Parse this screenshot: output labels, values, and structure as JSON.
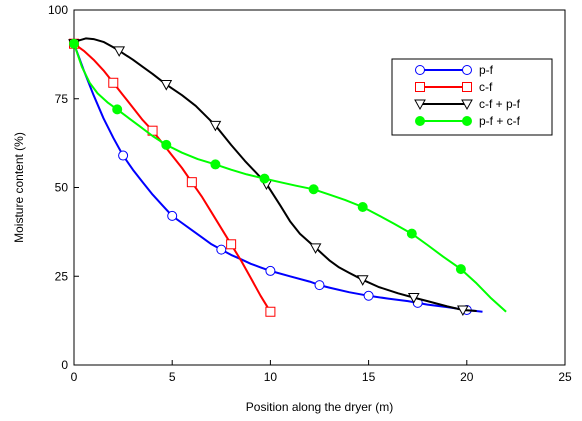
{
  "chart_data": {
    "type": "line",
    "title": "",
    "xlabel": "Position along the dryer (m)",
    "ylabel": "Moisture content (%)",
    "xlim": [
      0,
      25
    ],
    "ylim": [
      0,
      100
    ],
    "xticks": [
      0,
      5,
      10,
      15,
      20,
      25
    ],
    "yticks": [
      0,
      25,
      50,
      75,
      100
    ],
    "grid": false,
    "legend_position": "top-right",
    "series": [
      {
        "name": "p-f",
        "color": "#0000ff",
        "marker": "circle-open",
        "points": [
          [
            0,
            90.5
          ],
          [
            2.5,
            59
          ],
          [
            5,
            42
          ],
          [
            7.5,
            32.5
          ],
          [
            10,
            26.5
          ],
          [
            12.5,
            22.5
          ],
          [
            15,
            19.5
          ],
          [
            17.5,
            17.5
          ],
          [
            20,
            15.5
          ]
        ],
        "curve": [
          [
            0,
            90.5
          ],
          [
            0.5,
            83
          ],
          [
            1,
            76
          ],
          [
            1.5,
            69.5
          ],
          [
            2,
            64
          ],
          [
            2.5,
            59
          ],
          [
            3,
            55
          ],
          [
            3.5,
            51.5
          ],
          [
            4,
            48
          ],
          [
            4.5,
            45
          ],
          [
            5,
            42
          ],
          [
            5.5,
            40
          ],
          [
            6,
            38
          ],
          [
            6.5,
            36
          ],
          [
            7,
            34
          ],
          [
            7.5,
            32.5
          ],
          [
            8,
            31
          ],
          [
            8.5,
            29.8
          ],
          [
            9,
            28.5
          ],
          [
            9.5,
            27.5
          ],
          [
            10,
            26.5
          ],
          [
            11,
            25
          ],
          [
            12,
            23.5
          ],
          [
            12.5,
            22.5
          ],
          [
            13,
            21.8
          ],
          [
            14,
            20.5
          ],
          [
            15,
            19.5
          ],
          [
            16,
            18.7
          ],
          [
            17,
            18
          ],
          [
            17.5,
            17.5
          ],
          [
            18,
            17
          ],
          [
            19,
            16.3
          ],
          [
            20,
            15.5
          ],
          [
            20.8,
            15
          ]
        ]
      },
      {
        "name": "c-f",
        "color": "#ff0000",
        "marker": "square-open",
        "points": [
          [
            0,
            90.5
          ],
          [
            2,
            79.5
          ],
          [
            4,
            66
          ],
          [
            6,
            51.5
          ],
          [
            8,
            34
          ],
          [
            10,
            15
          ]
        ],
        "curve": [
          [
            0,
            90.5
          ],
          [
            0.5,
            88.5
          ],
          [
            1,
            86
          ],
          [
            1.5,
            83
          ],
          [
            2,
            79.5
          ],
          [
            2.5,
            76
          ],
          [
            3,
            72.5
          ],
          [
            3.5,
            69
          ],
          [
            4,
            66
          ],
          [
            4.5,
            62.5
          ],
          [
            5,
            59
          ],
          [
            5.5,
            55.5
          ],
          [
            6,
            51.5
          ],
          [
            6.5,
            47.5
          ],
          [
            7,
            43
          ],
          [
            7.5,
            38.5
          ],
          [
            8,
            34
          ],
          [
            8.5,
            29.5
          ],
          [
            9,
            24.5
          ],
          [
            9.5,
            19.5
          ],
          [
            10,
            15
          ]
        ]
      },
      {
        "name": "c-f + p-f",
        "color": "#000000",
        "marker": "triangle-down-open",
        "points": [
          [
            0,
            90.5
          ],
          [
            2.3,
            88.5
          ],
          [
            4.7,
            79
          ],
          [
            7.2,
            67.5
          ],
          [
            9.8,
            51
          ],
          [
            12.3,
            33
          ],
          [
            14.7,
            24
          ],
          [
            17.3,
            19
          ],
          [
            19.8,
            15.5
          ]
        ],
        "curve": [
          [
            0,
            91
          ],
          [
            0.3,
            91.5
          ],
          [
            0.6,
            92
          ],
          [
            1,
            91.8
          ],
          [
            1.5,
            91
          ],
          [
            2,
            89.5
          ],
          [
            2.3,
            88.5
          ],
          [
            3,
            86
          ],
          [
            3.5,
            84
          ],
          [
            4,
            82
          ],
          [
            4.7,
            79
          ],
          [
            5.5,
            76
          ],
          [
            6.2,
            73
          ],
          [
            7.2,
            67.5
          ],
          [
            8,
            62
          ],
          [
            8.7,
            57.5
          ],
          [
            9.3,
            54
          ],
          [
            9.8,
            51
          ],
          [
            10.5,
            45
          ],
          [
            11,
            40.5
          ],
          [
            11.5,
            37
          ],
          [
            12.3,
            33
          ],
          [
            13,
            29.5
          ],
          [
            13.5,
            27.5
          ],
          [
            14,
            26
          ],
          [
            14.7,
            24
          ],
          [
            15.5,
            22
          ],
          [
            16.5,
            20.2
          ],
          [
            17.3,
            19
          ],
          [
            18,
            18
          ],
          [
            19,
            16.5
          ],
          [
            19.8,
            15.5
          ],
          [
            20.5,
            15.2
          ]
        ]
      },
      {
        "name": "p-f + c-f",
        "color": "#00ff00",
        "marker": "circle-filled",
        "points": [
          [
            0,
            90.5
          ],
          [
            2.2,
            72
          ],
          [
            4.7,
            62
          ],
          [
            7.2,
            56.5
          ],
          [
            9.7,
            52.5
          ],
          [
            12.2,
            49.5
          ],
          [
            14.7,
            44.5
          ],
          [
            17.2,
            37
          ],
          [
            19.7,
            27
          ]
        ],
        "curve": [
          [
            0,
            90.5
          ],
          [
            0.4,
            84
          ],
          [
            0.8,
            79.5
          ],
          [
            1.2,
            76.5
          ],
          [
            1.7,
            74
          ],
          [
            2.2,
            72
          ],
          [
            2.8,
            69.5
          ],
          [
            3.4,
            67
          ],
          [
            4,
            64.5
          ],
          [
            4.7,
            62
          ],
          [
            5.5,
            59.8
          ],
          [
            6.3,
            58
          ],
          [
            7.2,
            56.5
          ],
          [
            8,
            55
          ],
          [
            8.8,
            53.7
          ],
          [
            9.7,
            52.5
          ],
          [
            10.5,
            51.5
          ],
          [
            11.3,
            50.5
          ],
          [
            12.2,
            49.5
          ],
          [
            13,
            48
          ],
          [
            13.8,
            46.5
          ],
          [
            14.7,
            44.5
          ],
          [
            15.5,
            42.2
          ],
          [
            16.3,
            39.8
          ],
          [
            17.2,
            37
          ],
          [
            18,
            33.8
          ],
          [
            18.8,
            30.5
          ],
          [
            19.7,
            27
          ],
          [
            20.5,
            23
          ],
          [
            21.2,
            19
          ],
          [
            22,
            15
          ]
        ]
      }
    ]
  }
}
